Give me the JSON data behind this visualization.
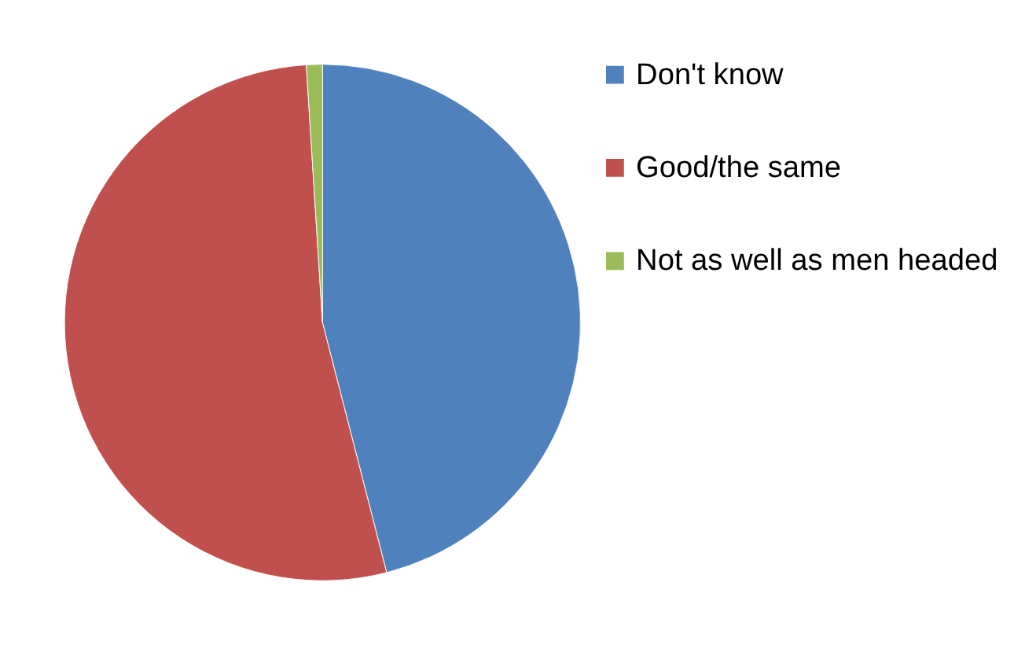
{
  "chart_data": {
    "type": "pie",
    "categories": [
      "Don't know",
      "Good/the same",
      "Not as well as men headed"
    ],
    "values": [
      46,
      53,
      1
    ],
    "colors": [
      "#4f81bd",
      "#c0504d",
      "#9bbb59"
    ],
    "legend": "right"
  }
}
